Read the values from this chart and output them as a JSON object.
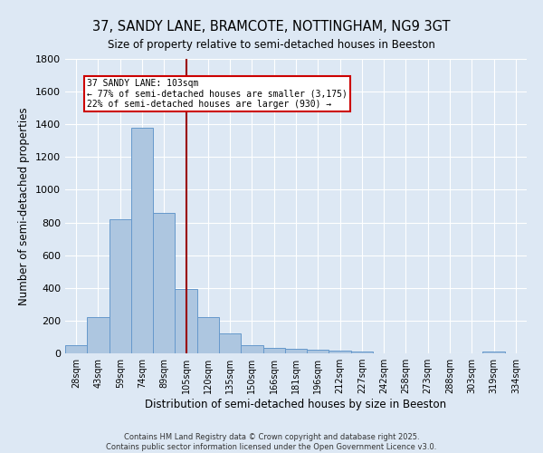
{
  "title1": "37, SANDY LANE, BRAMCOTE, NOTTINGHAM, NG9 3GT",
  "title2": "Size of property relative to semi-detached houses in Beeston",
  "xlabel": "Distribution of semi-detached houses by size in Beeston",
  "ylabel": "Number of semi-detached properties",
  "categories": [
    "28sqm",
    "43sqm",
    "59sqm",
    "74sqm",
    "89sqm",
    "105sqm",
    "120sqm",
    "135sqm",
    "150sqm",
    "166sqm",
    "181sqm",
    "196sqm",
    "212sqm",
    "227sqm",
    "242sqm",
    "258sqm",
    "273sqm",
    "288sqm",
    "303sqm",
    "319sqm",
    "334sqm"
  ],
  "values": [
    50,
    220,
    820,
    1380,
    860,
    395,
    220,
    120,
    50,
    35,
    25,
    20,
    15,
    10,
    0,
    0,
    0,
    0,
    0,
    12,
    0
  ],
  "bar_color": "#adc6e0",
  "bar_edge_color": "#6699cc",
  "vline_x": 5,
  "vline_color": "#990000",
  "annotation_title": "37 SANDY LANE: 103sqm",
  "annotation_line1": "← 77% of semi-detached houses are smaller (3,175)",
  "annotation_line2": "22% of semi-detached houses are larger (930) →",
  "annotation_box_color": "#ffffff",
  "annotation_box_edge": "#cc0000",
  "ylim": [
    0,
    1800
  ],
  "bg_color": "#dde8f4",
  "footer1": "Contains HM Land Registry data © Crown copyright and database right 2025.",
  "footer2": "Contains public sector information licensed under the Open Government Licence v3.0.",
  "yticks": [
    0,
    200,
    400,
    600,
    800,
    1000,
    1200,
    1400,
    1600,
    1800
  ]
}
